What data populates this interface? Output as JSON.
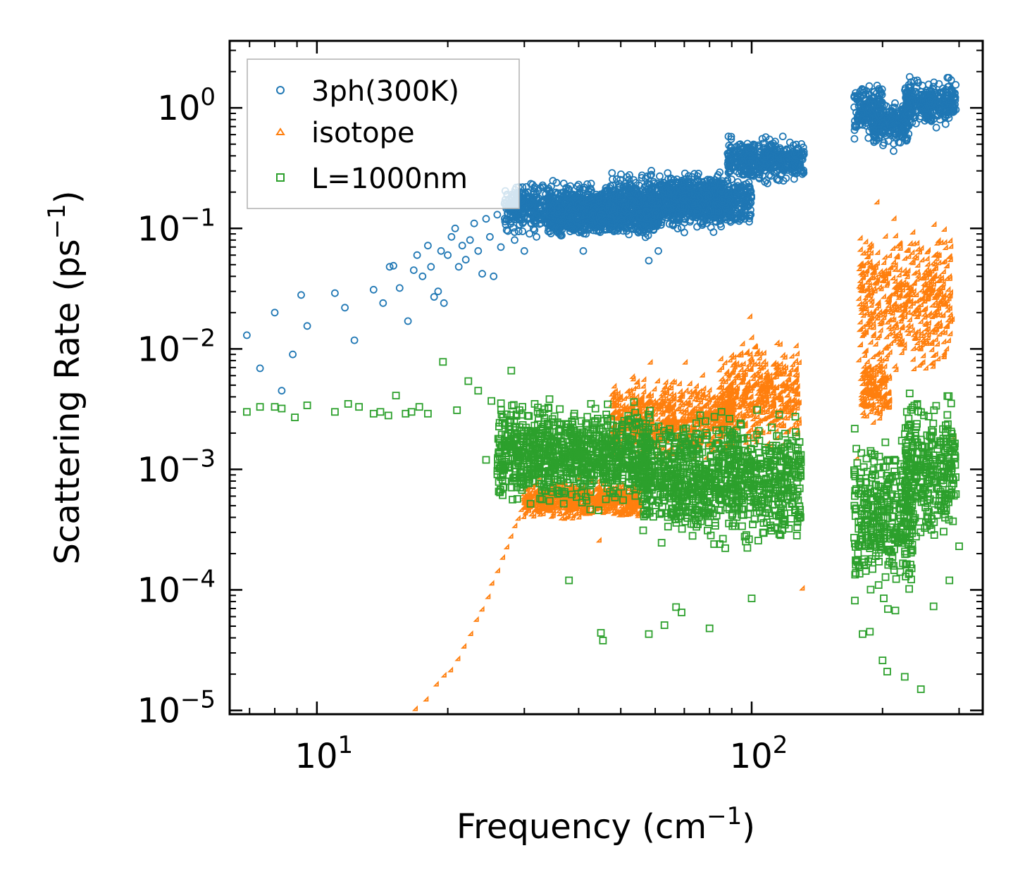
{
  "chart_data": {
    "type": "scatter",
    "xscale": "log",
    "yscale": "log",
    "xlabel": "Frequency (cm",
    "xlabel_sup": "−1",
    "xlabel_end": ")",
    "ylabel": "Scattering Rate (ps",
    "ylabel_sup": "−1",
    "ylabel_end": ")",
    "xlim": [
      6.3,
      340
    ],
    "ylim": [
      9.3e-06,
      3.6
    ],
    "x_ticks": [
      {
        "value": 10,
        "base": "10",
        "exp": "1"
      },
      {
        "value": 100,
        "base": "10",
        "exp": "2"
      }
    ],
    "y_ticks": [
      {
        "value": 1,
        "base": "10",
        "exp": "0"
      },
      {
        "value": 0.1,
        "base": "10",
        "exp": "−1"
      },
      {
        "value": 0.01,
        "base": "10",
        "exp": "−2"
      },
      {
        "value": 0.001,
        "base": "10",
        "exp": "−3"
      },
      {
        "value": 0.0001,
        "base": "10",
        "exp": "−4"
      },
      {
        "value": 1e-05,
        "base": "10",
        "exp": "−5"
      }
    ],
    "legend_position": "top-left",
    "series": [
      {
        "name": "3ph(300K)",
        "color": "#1f77b4",
        "marker": "circle",
        "points": [
          [
            6.9,
            0.013
          ],
          [
            7.4,
            0.0069
          ],
          [
            8.0,
            0.02
          ],
          [
            8.3,
            0.0045
          ],
          [
            8.8,
            0.009
          ],
          [
            9.2,
            0.028
          ],
          [
            9.5,
            0.0155
          ],
          [
            11.0,
            0.029
          ],
          [
            11.6,
            0.022
          ],
          [
            12.2,
            0.0118
          ],
          [
            13.5,
            0.031
          ],
          [
            14.2,
            0.024
          ],
          [
            14.7,
            0.048
          ],
          [
            15.0,
            0.049
          ],
          [
            15.5,
            0.032
          ],
          [
            16.2,
            0.017
          ],
          [
            16.7,
            0.045
          ],
          [
            17.0,
            0.06
          ],
          [
            17.5,
            0.04
          ],
          [
            18.0,
            0.072
          ],
          [
            18.3,
            0.048
          ],
          [
            18.6,
            0.027
          ],
          [
            19.0,
            0.03
          ],
          [
            19.3,
            0.065
          ],
          [
            19.6,
            0.024
          ],
          [
            20.0,
            0.06
          ],
          [
            20.4,
            0.085
          ],
          [
            20.8,
            0.1
          ],
          [
            21.2,
            0.048
          ],
          [
            21.6,
            0.072
          ],
          [
            22.0,
            0.055
          ],
          [
            22.5,
            0.08
          ],
          [
            23.0,
            0.11
          ],
          [
            23.5,
            0.065
          ],
          [
            24.0,
            0.042
          ],
          [
            24.5,
            0.12
          ],
          [
            25.0,
            0.085
          ],
          [
            25.5,
            0.04
          ],
          [
            26.0,
            0.13
          ],
          [
            26.5,
            0.07
          ],
          [
            27.0,
            0.16
          ],
          [
            27.5,
            0.095
          ],
          [
            28.0,
            0.15
          ],
          [
            28.5,
            0.08
          ],
          [
            29.0,
            0.19
          ],
          [
            29.5,
            0.12
          ],
          [
            30.0,
            0.065
          ],
          [
            30.5,
            0.2
          ],
          [
            31.0,
            0.14
          ],
          [
            32.0,
            0.085
          ],
          [
            33.0,
            0.22
          ],
          [
            34.0,
            0.11
          ],
          [
            36.0,
            0.1
          ],
          [
            41.0,
            0.065
          ],
          [
            58.0,
            0.054
          ],
          [
            61.0,
            0.065
          ]
        ],
        "bands": [
          {
            "x": [
              27,
              47
            ],
            "y": [
              0.08,
              0.27
            ]
          },
          {
            "x": [
              34,
              62
            ],
            "y": [
              0.075,
              0.22
            ]
          },
          {
            "x": [
              47,
              90
            ],
            "y": [
              0.085,
              0.33
            ]
          },
          {
            "x": [
              62,
              100
            ],
            "y": [
              0.095,
              0.32
            ]
          },
          {
            "x": [
              88,
              132
            ],
            "y": [
              0.22,
              0.62
            ]
          },
          {
            "x": [
              172,
              200
            ],
            "y": [
              0.5,
              1.8
            ]
          },
          {
            "x": [
              190,
              230
            ],
            "y": [
              0.42,
              1.3
            ]
          },
          {
            "x": [
              225,
              295
            ],
            "y": [
              0.62,
              2.0
            ]
          }
        ]
      },
      {
        "name": "isotope",
        "color": "#ff7f0e",
        "marker": "triangle",
        "points": [
          [
            17.0,
            1e-05
          ],
          [
            18.0,
            1.2e-05
          ],
          [
            19.0,
            1.6e-05
          ],
          [
            19.8,
            1.9e-05
          ],
          [
            20.5,
            2.1e-05
          ],
          [
            21.3,
            2.6e-05
          ],
          [
            22.0,
            3.3e-05
          ],
          [
            22.8,
            4.2e-05
          ],
          [
            23.5,
            5.5e-05
          ],
          [
            24.2,
            6.7e-05
          ],
          [
            25.0,
            8.5e-05
          ],
          [
            25.5,
            0.00011
          ],
          [
            26.3,
            0.00014
          ],
          [
            27.0,
            0.00018
          ],
          [
            27.6,
            0.00022
          ],
          [
            28.2,
            0.00027
          ],
          [
            28.8,
            0.00033
          ],
          [
            29.3,
            0.00038
          ],
          [
            29.8,
            0.00045
          ],
          [
            30.3,
            0.00052
          ],
          [
            31.0,
            0.00058
          ],
          [
            45.0,
            0.00025
          ],
          [
            59.0,
            0.0075
          ],
          [
            71.0,
            0.0075
          ],
          [
            100.0,
            0.018
          ],
          [
            132.0,
            0.0001
          ],
          [
            176.0,
            0.0012
          ],
          [
            180.0,
            0.0055
          ],
          [
            196.0,
            0.16
          ],
          [
            237.0,
            0.09
          ],
          [
            250.0,
            0.0075
          ],
          [
            280.0,
            0.095
          ],
          [
            295.0,
            0.0018
          ],
          [
            292.0,
            0.017
          ]
        ],
        "bands": [
          {
            "x": [
              30,
              56
            ],
            "y": [
              0.00035,
              0.00085
            ]
          },
          {
            "x": [
              48,
              92
            ],
            "y": [
              0.001,
              0.0065
            ]
          },
          {
            "x": [
              85,
              130
            ],
            "y": [
              0.0012,
              0.014
            ]
          },
          {
            "x": [
              178,
              290
            ],
            "y": [
              0.0045,
              0.14
            ]
          },
          {
            "x": [
              180,
              210
            ],
            "y": [
              0.002,
              0.01
            ]
          }
        ]
      },
      {
        "name": "L=1000nm",
        "color": "#2ca02c",
        "marker": "square",
        "points": [
          [
            6.9,
            0.003
          ],
          [
            7.4,
            0.0033
          ],
          [
            8.0,
            0.0033
          ],
          [
            8.3,
            0.0032
          ],
          [
            8.9,
            0.0027
          ],
          [
            9.5,
            0.0034
          ],
          [
            11.0,
            0.003
          ],
          [
            11.8,
            0.0035
          ],
          [
            12.5,
            0.0033
          ],
          [
            13.5,
            0.0029
          ],
          [
            14.0,
            0.003
          ],
          [
            14.6,
            0.0028
          ],
          [
            15.2,
            0.0041
          ],
          [
            16.0,
            0.0029
          ],
          [
            16.5,
            0.003
          ],
          [
            17.2,
            0.0033
          ],
          [
            18.0,
            0.0029
          ],
          [
            19.5,
            0.0078
          ],
          [
            21.0,
            0.0031
          ],
          [
            22.3,
            0.0054
          ],
          [
            23.5,
            0.0045
          ],
          [
            24.5,
            0.0012
          ],
          [
            25.2,
            0.0037
          ],
          [
            26.8,
            0.0027
          ],
          [
            28.0,
            0.0066
          ],
          [
            38.0,
            0.00012
          ],
          [
            45.0,
            4.4e-05
          ],
          [
            45.5,
            3.8e-05
          ],
          [
            58.0,
            4.3e-05
          ],
          [
            63.0,
            5.1e-05
          ],
          [
            67.0,
            7.2e-05
          ],
          [
            69.0,
            6.5e-05
          ],
          [
            80.0,
            4.8e-05
          ],
          [
            100.0,
            8.5e-05
          ],
          [
            180.0,
            4.3e-05
          ],
          [
            187.0,
            4.5e-05
          ],
          [
            200.0,
            2.6e-05
          ],
          [
            205.0,
            2.1e-05
          ],
          [
            225.0,
            1.9e-05
          ],
          [
            245.0,
            1.5e-05
          ],
          [
            262.0,
            7.3e-05
          ],
          [
            285.0,
            0.00012
          ],
          [
            300.0,
            0.00023
          ]
        ],
        "bands": [
          {
            "x": [
              26,
              58
            ],
            "y": [
              0.0004,
              0.0045
            ]
          },
          {
            "x": [
              56,
              130
            ],
            "y": [
              0.00018,
              0.0038
            ]
          },
          {
            "x": [
              172,
              235
            ],
            "y": [
              6e-05,
              0.0028
            ]
          },
          {
            "x": [
              225,
              295
            ],
            "y": [
              0.00016,
              0.0058
            ]
          }
        ]
      }
    ]
  }
}
